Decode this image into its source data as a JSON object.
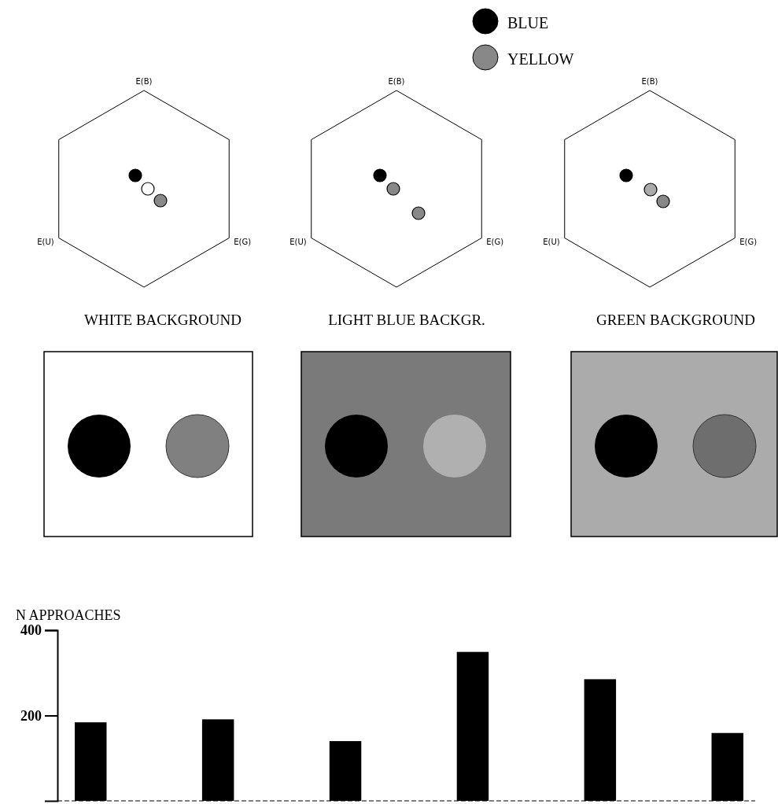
{
  "chart_data": [
    {
      "type": "other",
      "annotations": [
        "BLUE",
        "YELLOW"
      ]
    },
    {
      "type": "other",
      "title": "WHITE BACKGROUND",
      "annotations": [
        "E(B)",
        "E(U)",
        "E(G)"
      ]
    },
    {
      "type": "other",
      "title": "LIGHT BLUE BACKGR.",
      "annotations": [
        "E(B)",
        "E(U)",
        "E(G)"
      ]
    },
    {
      "type": "other",
      "title": "GREEN BACKGROUND",
      "annotations": [
        "E(B)",
        "E(U)",
        "E(G)"
      ]
    },
    {
      "type": "bar",
      "ylabel": "N APPROACHES",
      "categories": [
        null,
        null,
        null,
        null,
        null,
        null
      ],
      "values": [
        184,
        191,
        140,
        349,
        285,
        159
      ],
      "color": "#000000",
      "ylim": [
        0,
        400
      ],
      "yticks": [
        200,
        400
      ]
    }
  ]
}
